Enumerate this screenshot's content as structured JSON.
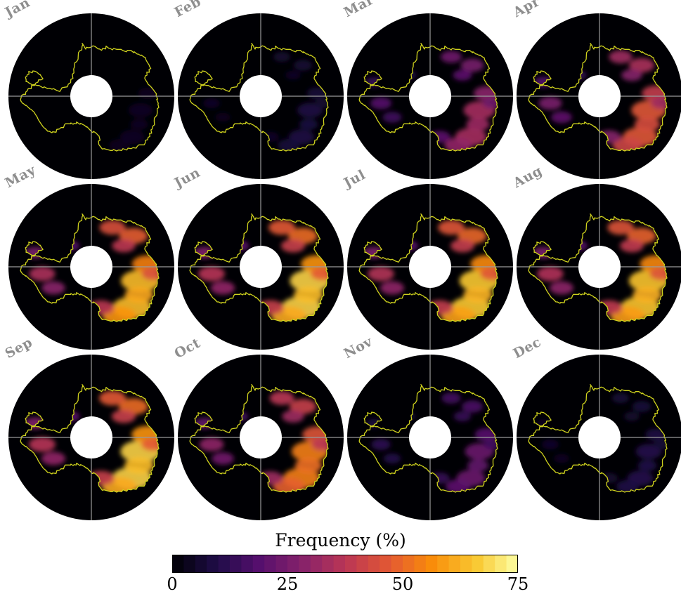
{
  "months": [
    {
      "label": "Jan",
      "intensity": 0.06
    },
    {
      "label": "Feb",
      "intensity": 0.12
    },
    {
      "label": "Mar",
      "intensity": 0.45
    },
    {
      "label": "Apr",
      "intensity": 0.62
    },
    {
      "label": "May",
      "intensity": 0.85
    },
    {
      "label": "Jun",
      "intensity": 0.9
    },
    {
      "label": "Jul",
      "intensity": 0.88
    },
    {
      "label": "Aug",
      "intensity": 0.87
    },
    {
      "label": "Sep",
      "intensity": 0.9
    },
    {
      "label": "Oct",
      "intensity": 0.72
    },
    {
      "label": "Nov",
      "intensity": 0.3
    },
    {
      "label": "Dec",
      "intensity": 0.14
    }
  ],
  "colorbar": {
    "title": "Frequency (%)",
    "min": 0,
    "max": 75,
    "ticks": [
      "0",
      "25",
      "50",
      "75"
    ],
    "tick_values": [
      0,
      25,
      50,
      75
    ],
    "steps": 30,
    "colormap": "inferno"
  },
  "colors": {
    "ocean": "#000004",
    "coastline": "#cfd21e",
    "gridline": "#9a9a9a",
    "label": "#8e8e8e"
  }
}
